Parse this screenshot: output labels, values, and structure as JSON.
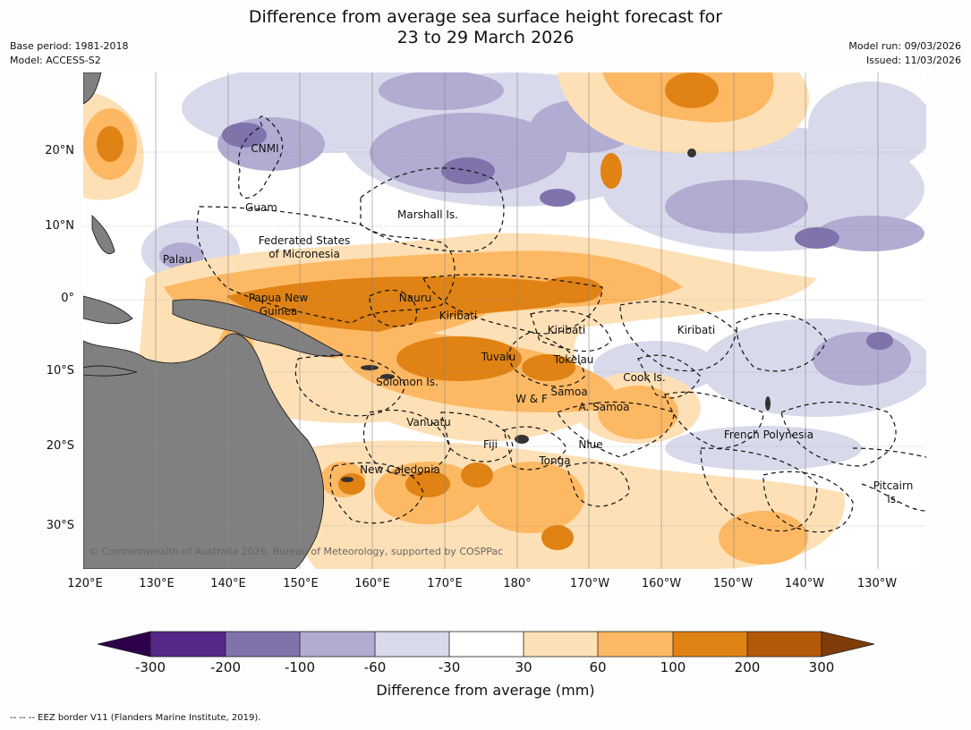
{
  "title_line1": "Difference from average sea surface height forecast for",
  "title_line2": "23 to 29 March 2026",
  "base_period": "Base period: 1981-2018",
  "model": "Model: ACCESS-S2",
  "model_run": "Model run: 09/03/2026",
  "issued": "Issued: 11/03/2026",
  "lat_labels": [
    "20°N",
    "10°N",
    "0°",
    "10°S",
    "20°S",
    "30°S"
  ],
  "lon_labels": [
    "120°E",
    "130°E",
    "140°E",
    "150°E",
    "160°E",
    "170°E",
    "180°",
    "170°W",
    "160°W",
    "150°W",
    "140°W",
    "130°W"
  ],
  "places": [
    "CNMI",
    "Guam",
    "Marshall Is.",
    "Federated States",
    "of Micronesia",
    "Palau",
    "Papua New",
    "Guinea",
    "Nauru",
    "Kiribati",
    "Kiribati",
    "Kiribati",
    "Tuvalu",
    "Tokelau",
    "Cook Is.",
    "Solomon Is.",
    "W & F",
    "Samoa",
    "A. Samoa",
    "Vanuatu",
    "Fiji",
    "Niue",
    "Tonga",
    "French Polynesia",
    "New Caledonia",
    "Pitcairn",
    "Is."
  ],
  "copyright": "© Commonwealth of Australia 2026, Bureau of Meteorology, supported by COSPPac",
  "colorbar": {
    "ticks": [
      "-300",
      "-200",
      "-100",
      "-60",
      "-30",
      "30",
      "60",
      "100",
      "200",
      "300"
    ],
    "colors": [
      "#2d004b",
      "#542788",
      "#8073ac",
      "#b2abd2",
      "#d8daeb",
      "#ffffff",
      "#fee0b6",
      "#fdb863",
      "#e08214",
      "#b35806",
      "#7f3b08"
    ],
    "label": "Difference from average (mm)"
  },
  "footnote": "--  --  -- EEZ border V11 (Flanders Marine Institute, 2019)."
}
